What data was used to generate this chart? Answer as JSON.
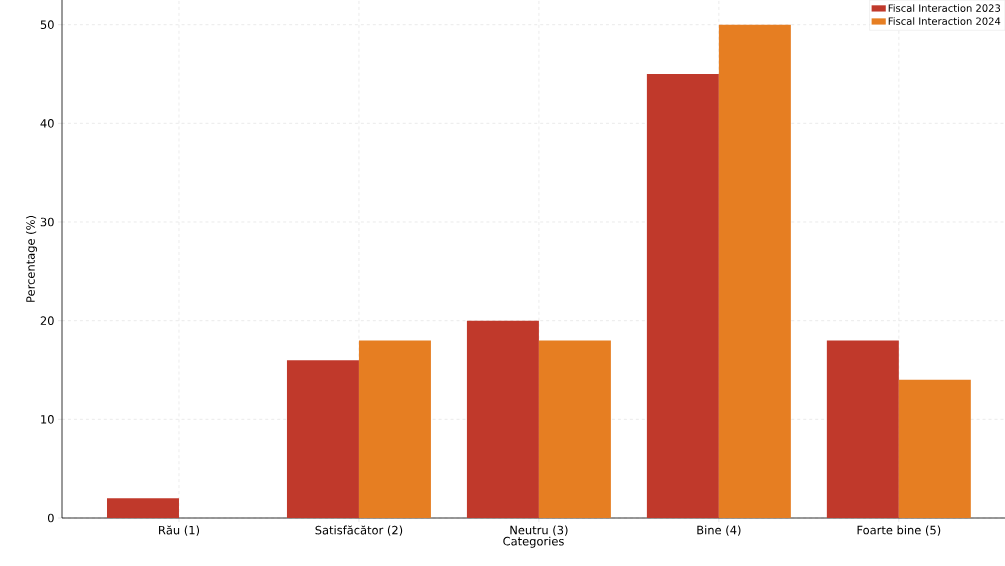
{
  "chart_data": {
    "type": "bar",
    "xlabel": "Categories",
    "ylabel": "Percentage (%)",
    "categories": [
      "Rău (1)",
      "Satisfăcător (2)",
      "Neutru (3)",
      "Bine (4)",
      "Foarte bine (5)"
    ],
    "series": [
      {
        "name": "Fiscal Interaction 2023",
        "color": "#c0392b",
        "values": [
          2,
          16,
          20,
          45,
          18
        ]
      },
      {
        "name": "Fiscal Interaction 2024",
        "color": "#e67e22",
        "values": [
          0,
          18,
          18,
          50,
          14
        ]
      }
    ],
    "ylim": [
      0,
      52.5
    ],
    "yticks": [
      0,
      10,
      20,
      30,
      40,
      50
    ],
    "grid": true,
    "legend": "top right"
  }
}
